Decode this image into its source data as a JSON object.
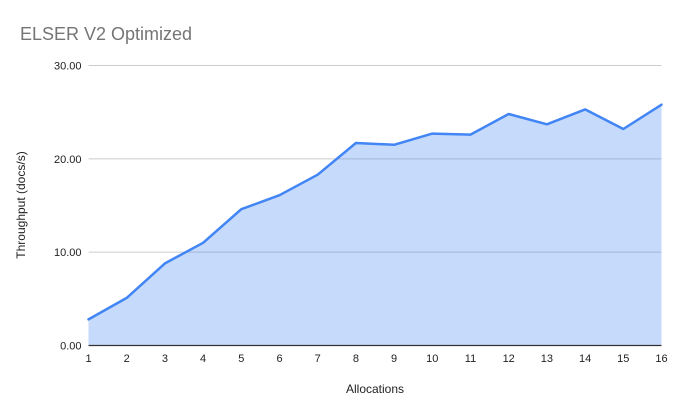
{
  "title": "ELSER V2 Optimized",
  "colors": {
    "line": "#4285f4",
    "area_fill": "#4285f4",
    "area_opacity": 0.3,
    "gridline": "#cccccc",
    "axis": "#333333",
    "title_text": "#757575",
    "tick_text": "#222222",
    "axis_title_text": "#222222",
    "background": "#ffffff"
  },
  "chart_data": {
    "type": "area",
    "title": "ELSER V2 Optimized",
    "xlabel": "Allocations",
    "ylabel": "Throughput (docs/s)",
    "categories": [
      "1",
      "2",
      "3",
      "4",
      "5",
      "6",
      "7",
      "8",
      "9",
      "10",
      "11",
      "12",
      "13",
      "14",
      "15",
      "16"
    ],
    "series": [
      {
        "name": "Throughput (docs/s)",
        "values": [
          2.8,
          5.1,
          8.8,
          11.0,
          14.6,
          16.1,
          18.3,
          21.7,
          21.5,
          22.7,
          22.6,
          24.8,
          23.7,
          25.3,
          23.2,
          25.8
        ]
      }
    ],
    "ylim": [
      0,
      30
    ],
    "yticks": [
      0,
      10,
      20,
      30
    ],
    "ytick_labels": [
      "0.00",
      "10.00",
      "20.00",
      "30.00"
    ],
    "grid": true,
    "legend_position": "none"
  }
}
